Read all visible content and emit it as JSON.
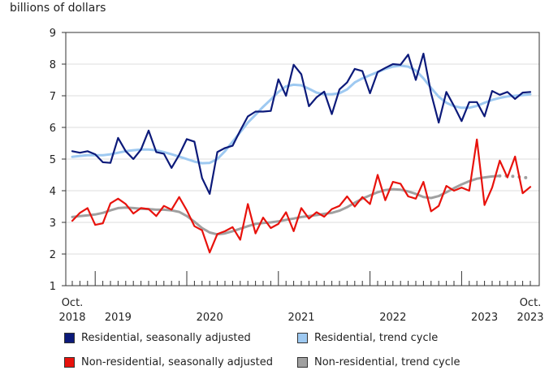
{
  "chart_data": {
    "type": "line",
    "ylabel": "billions of dollars",
    "ylim": [
      1,
      9
    ],
    "yticks": [
      1,
      2,
      3,
      4,
      5,
      6,
      7,
      8,
      9
    ],
    "x_start": "Oct. 2018",
    "x_end": "Oct. 2023",
    "x_tick_labels": [
      {
        "month": 0,
        "label": "Oct.",
        "sub": "2018"
      },
      {
        "month": 6,
        "label": "2019"
      },
      {
        "month": 18,
        "label": "2020"
      },
      {
        "month": 30,
        "label": "2021"
      },
      {
        "month": 42,
        "label": "2022"
      },
      {
        "month": 54,
        "label": "2023"
      },
      {
        "month": 60,
        "label": "Oct.",
        "sub": "2023"
      }
    ],
    "series": [
      {
        "name": "Residential, seasonally adjusted",
        "color": "#0c1a7a",
        "values": [
          5.25,
          5.2,
          5.25,
          5.15,
          4.9,
          4.88,
          5.67,
          5.25,
          5.0,
          5.3,
          5.9,
          5.22,
          5.17,
          4.72,
          5.13,
          5.63,
          5.55,
          4.4,
          3.9,
          5.22,
          5.35,
          5.42,
          5.9,
          6.35,
          6.5,
          6.5,
          6.52,
          7.52,
          7.0,
          7.98,
          7.68,
          6.67,
          6.95,
          7.13,
          6.42,
          7.2,
          7.42,
          7.85,
          7.78,
          7.08,
          7.75,
          7.88,
          8.0,
          7.98,
          8.3,
          7.5,
          8.33,
          7.08,
          6.15,
          7.12,
          6.68,
          6.2,
          6.8,
          6.8,
          6.35,
          7.15,
          7.03,
          7.12,
          6.9,
          7.1,
          7.12
        ]
      },
      {
        "name": "Residential, trend cycle",
        "color": "#9ec9f1",
        "values": [
          5.07,
          5.1,
          5.12,
          5.12,
          5.12,
          5.15,
          5.2,
          5.25,
          5.28,
          5.3,
          5.3,
          5.28,
          5.22,
          5.15,
          5.08,
          5.0,
          4.92,
          4.87,
          4.88,
          5.0,
          5.25,
          5.55,
          5.85,
          6.15,
          6.4,
          6.65,
          6.88,
          7.12,
          7.3,
          7.35,
          7.33,
          7.22,
          7.1,
          7.05,
          7.05,
          7.08,
          7.2,
          7.42,
          7.55,
          7.65,
          7.75,
          7.85,
          7.92,
          7.95,
          7.92,
          7.8,
          7.55,
          7.25,
          6.97,
          6.78,
          6.67,
          6.62,
          6.62,
          6.68,
          6.78,
          6.87,
          6.93,
          6.98,
          7.0,
          7.02,
          7.05
        ]
      },
      {
        "name": "Non-residential, seasonally adjusted",
        "color": "#e8120c",
        "values": [
          3.05,
          3.3,
          3.45,
          2.92,
          2.97,
          3.6,
          3.75,
          3.58,
          3.28,
          3.45,
          3.42,
          3.2,
          3.52,
          3.4,
          3.8,
          3.38,
          2.88,
          2.75,
          2.05,
          2.63,
          2.72,
          2.85,
          2.45,
          3.58,
          2.65,
          3.15,
          2.82,
          2.95,
          3.32,
          2.72,
          3.45,
          3.12,
          3.32,
          3.18,
          3.42,
          3.52,
          3.82,
          3.5,
          3.8,
          3.58,
          4.5,
          3.7,
          4.28,
          4.22,
          3.82,
          3.75,
          4.28,
          3.35,
          3.52,
          4.15,
          4.0,
          4.1,
          4.0,
          5.62,
          3.55,
          4.1,
          4.95,
          4.42,
          5.08,
          3.92,
          4.12
        ]
      },
      {
        "name": "Non-residential, trend cycle",
        "color": "#a0a0a0",
        "values": [
          3.17,
          3.2,
          3.22,
          3.25,
          3.3,
          3.38,
          3.45,
          3.47,
          3.45,
          3.43,
          3.42,
          3.4,
          3.4,
          3.38,
          3.33,
          3.2,
          3.02,
          2.82,
          2.68,
          2.62,
          2.65,
          2.72,
          2.8,
          2.88,
          2.95,
          2.98,
          3.0,
          3.03,
          3.08,
          3.12,
          3.17,
          3.2,
          3.23,
          3.27,
          3.3,
          3.37,
          3.48,
          3.62,
          3.75,
          3.85,
          3.95,
          4.02,
          4.05,
          4.03,
          3.98,
          3.9,
          3.8,
          3.77,
          3.83,
          3.95,
          4.08,
          4.2,
          4.3,
          4.38,
          4.42,
          4.45,
          4.47,
          4.47,
          4.45,
          4.42,
          4.4
        ],
        "dotted_from_index": 56
      }
    ]
  }
}
